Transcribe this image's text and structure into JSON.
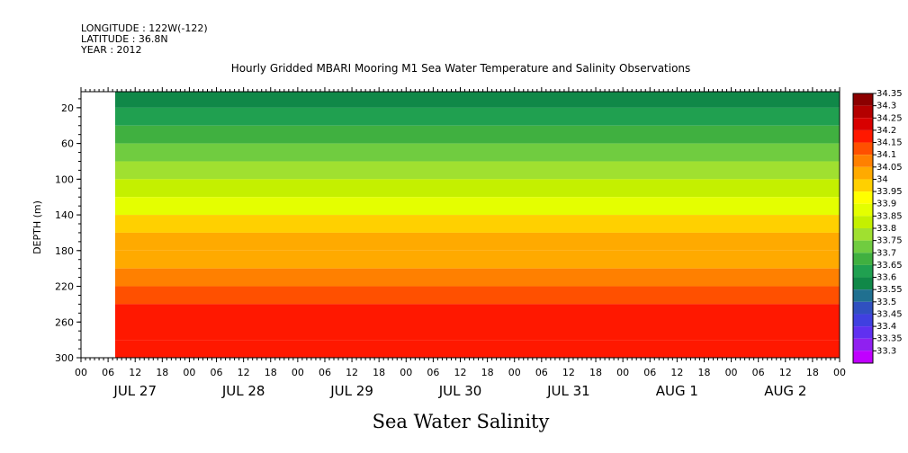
{
  "chart_data": {
    "type": "heatmap",
    "title": "Hourly Gridded MBARI Mooring M1 Sea Water Temperature and Salinity Observations",
    "subtitle": "Sea Water Salinity",
    "meta_lines": [
      "LONGITUDE : 122W(-122)",
      "LATITUDE : 36.8N",
      "YEAR : 2012"
    ],
    "ylabel": "DEPTH (m)",
    "ylim": [
      300,
      2
    ],
    "yticks": [
      20,
      60,
      100,
      140,
      180,
      220,
      260,
      300
    ],
    "x_hour_labels": [
      "00",
      "06",
      "12",
      "18",
      "00",
      "06",
      "12",
      "18",
      "00",
      "06",
      "12",
      "18",
      "00",
      "06",
      "12",
      "18",
      "00",
      "06",
      "12",
      "18",
      "00",
      "06",
      "12",
      "18",
      "00",
      "06",
      "12",
      "18",
      "00"
    ],
    "day_labels": [
      "JUL 27",
      "JUL 28",
      "JUL 29",
      "JUL 30",
      "JUL 31",
      "AUG  1",
      "AUG  2"
    ],
    "colorbar": {
      "levels": [
        34.35,
        34.3,
        34.25,
        34.2,
        34.15,
        34.1,
        34.05,
        34,
        33.95,
        33.9,
        33.85,
        33.8,
        33.75,
        33.7,
        33.65,
        33.6,
        33.55,
        33.5,
        33.45,
        33.4,
        33.35,
        33.3
      ],
      "colors": [
        "#8c0000",
        "#b40000",
        "#d80000",
        "#ff1800",
        "#ff5000",
        "#ff8000",
        "#ffaa00",
        "#ffd000",
        "#ffff00",
        "#e4ff00",
        "#c4f000",
        "#a0e030",
        "#70cc40",
        "#40b040",
        "#20a050",
        "#108848",
        "#207090",
        "#3050c0",
        "#4040e0",
        "#6030f0",
        "#9020f0",
        "#c000ff"
      ]
    },
    "depth_bands": [
      {
        "depth_top": 2,
        "salinity": 33.6
      },
      {
        "depth_top": 20,
        "salinity": 33.68
      },
      {
        "depth_top": 40,
        "salinity": 33.73
      },
      {
        "depth_top": 60,
        "salinity": 33.78
      },
      {
        "depth_top": 80,
        "salinity": 33.83
      },
      {
        "depth_top": 100,
        "salinity": 33.87
      },
      {
        "depth_top": 120,
        "salinity": 33.93
      },
      {
        "depth_top": 140,
        "salinity": 34.02
      },
      {
        "depth_top": 160,
        "salinity": 34.05
      },
      {
        "depth_top": 180,
        "salinity": 34.08
      },
      {
        "depth_top": 200,
        "salinity": 34.13
      },
      {
        "depth_top": 220,
        "salinity": 34.18
      },
      {
        "depth_top": 240,
        "salinity": 34.23
      },
      {
        "depth_top": 280,
        "salinity": 34.2
      }
    ]
  }
}
